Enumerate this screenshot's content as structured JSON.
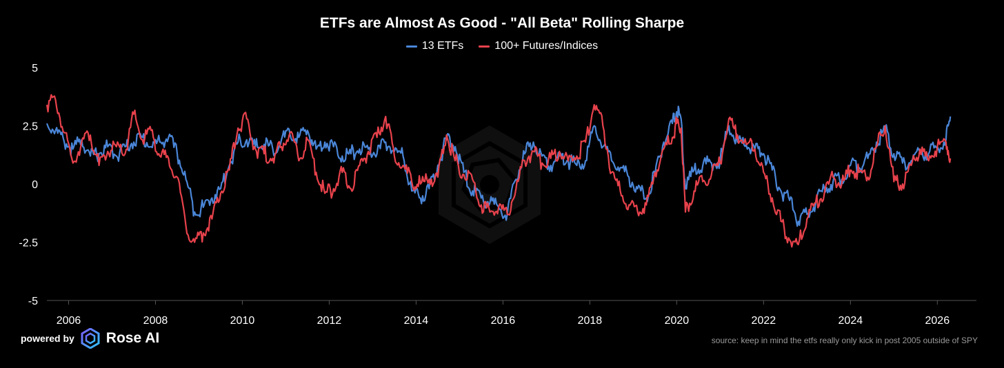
{
  "colors": {
    "background": "#000000",
    "etf": "#4a86d8",
    "futures": "#e8424c",
    "axis": "#555555",
    "tick_text": "#ffffff"
  },
  "chart_data": {
    "type": "line",
    "title": "ETFs are Almost As Good - \"All Beta\" Rolling Sharpe",
    "xlabel": "",
    "ylabel": "",
    "xlim": [
      2005.5,
      2026.9
    ],
    "ylim": [
      -5,
      5
    ],
    "yticks": [
      5,
      2.5,
      0,
      -2.5,
      -5
    ],
    "ytick_labels": [
      "5",
      "2.5",
      "0",
      "-2.5",
      "-5"
    ],
    "xticks": [
      2006,
      2008,
      2010,
      2012,
      2014,
      2016,
      2018,
      2020,
      2022,
      2024,
      2026
    ],
    "xtick_labels": [
      "2006",
      "2008",
      "2010",
      "2012",
      "2014",
      "2016",
      "2018",
      "2020",
      "2022",
      "2024",
      "2026"
    ],
    "legend_position": "top-center",
    "series": [
      {
        "name": "13 ETFs",
        "color": "#4a86d8",
        "x": [
          2005.5,
          2005.7,
          2005.9,
          2006.1,
          2006.3,
          2006.5,
          2006.7,
          2006.9,
          2007.1,
          2007.3,
          2007.5,
          2007.7,
          2007.9,
          2008.1,
          2008.3,
          2008.5,
          2008.7,
          2008.9,
          2009.1,
          2009.3,
          2009.5,
          2009.7,
          2009.9,
          2010.1,
          2010.3,
          2010.5,
          2010.7,
          2010.9,
          2011.1,
          2011.3,
          2011.5,
          2011.7,
          2011.9,
          2012.1,
          2012.3,
          2012.5,
          2012.7,
          2012.9,
          2013.1,
          2013.3,
          2013.5,
          2013.7,
          2013.9,
          2014.1,
          2014.3,
          2014.5,
          2014.7,
          2014.9,
          2015.1,
          2015.3,
          2015.5,
          2015.7,
          2015.9,
          2016.1,
          2016.3,
          2016.5,
          2016.7,
          2016.9,
          2017.1,
          2017.3,
          2017.5,
          2017.7,
          2017.9,
          2018.1,
          2018.3,
          2018.5,
          2018.7,
          2018.9,
          2019.1,
          2019.3,
          2019.5,
          2019.7,
          2019.9,
          2020.0,
          2020.1,
          2020.2,
          2020.4,
          2020.6,
          2020.8,
          2021.0,
          2021.2,
          2021.4,
          2021.6,
          2021.8,
          2022.0,
          2022.2,
          2022.4,
          2022.6,
          2022.8,
          2023.0,
          2023.2,
          2023.4,
          2023.6,
          2023.8,
          2024.0,
          2024.2,
          2024.4,
          2024.6,
          2024.8,
          2025.0,
          2025.2,
          2025.4,
          2025.6,
          2025.8,
          2026.0,
          2026.2,
          2026.3
        ],
        "values": [
          2.6,
          2.3,
          1.8,
          1.5,
          1.9,
          1.2,
          1.3,
          1.6,
          1.2,
          1.6,
          1.8,
          2.0,
          1.6,
          1.8,
          2.0,
          1.3,
          0.2,
          -1.2,
          -1.0,
          -0.6,
          -0.2,
          0.8,
          1.8,
          1.9,
          1.6,
          1.7,
          1.5,
          1.9,
          2.1,
          2.0,
          2.3,
          1.5,
          1.8,
          1.6,
          1.2,
          1.3,
          1.5,
          1.5,
          1.3,
          1.8,
          1.4,
          1.2,
          -0.3,
          -0.6,
          -0.2,
          0.8,
          1.9,
          1.6,
          0.5,
          -0.3,
          -0.6,
          -0.8,
          -1.0,
          -1.3,
          0.2,
          1.3,
          1.8,
          1.2,
          0.8,
          1.2,
          1.0,
          0.8,
          1.0,
          2.5,
          1.6,
          1.0,
          0.7,
          0.3,
          -0.2,
          -0.6,
          0.4,
          1.8,
          2.6,
          3.1,
          2.8,
          -0.2,
          0.6,
          0.8,
          0.9,
          1.0,
          2.5,
          1.8,
          1.7,
          1.5,
          1.3,
          0.6,
          -0.3,
          -0.7,
          -1.6,
          -1.3,
          -0.8,
          -0.2,
          0.1,
          0.2,
          0.8,
          0.7,
          1.1,
          1.8,
          2.4,
          1.3,
          0.9,
          1.0,
          1.4,
          1.3,
          1.6,
          1.9,
          2.9
        ]
      },
      {
        "name": "100+ Futures/Indices",
        "color": "#e8424c",
        "x": [
          2005.5,
          2005.7,
          2005.9,
          2006.1,
          2006.3,
          2006.5,
          2006.7,
          2006.9,
          2007.1,
          2007.3,
          2007.5,
          2007.7,
          2007.9,
          2008.1,
          2008.3,
          2008.5,
          2008.7,
          2008.9,
          2009.1,
          2009.3,
          2009.5,
          2009.7,
          2009.9,
          2010.1,
          2010.3,
          2010.5,
          2010.7,
          2010.9,
          2011.1,
          2011.3,
          2011.5,
          2011.7,
          2011.9,
          2012.1,
          2012.3,
          2012.5,
          2012.7,
          2012.9,
          2013.1,
          2013.3,
          2013.5,
          2013.7,
          2013.9,
          2014.1,
          2014.3,
          2014.5,
          2014.7,
          2014.9,
          2015.1,
          2015.3,
          2015.5,
          2015.7,
          2015.9,
          2016.1,
          2016.3,
          2016.5,
          2016.7,
          2016.9,
          2017.1,
          2017.3,
          2017.5,
          2017.7,
          2017.9,
          2018.1,
          2018.3,
          2018.5,
          2018.7,
          2018.9,
          2019.1,
          2019.3,
          2019.5,
          2019.7,
          2019.9,
          2020.0,
          2020.1,
          2020.2,
          2020.4,
          2020.6,
          2020.8,
          2021.0,
          2021.2,
          2021.4,
          2021.6,
          2021.8,
          2022.0,
          2022.2,
          2022.4,
          2022.6,
          2022.8,
          2023.0,
          2023.2,
          2023.4,
          2023.6,
          2023.8,
          2024.0,
          2024.2,
          2024.4,
          2024.6,
          2024.8,
          2025.0,
          2025.2,
          2025.4,
          2025.6,
          2025.8,
          2026.0,
          2026.2,
          2026.3
        ],
        "values": [
          3.4,
          3.6,
          2.2,
          0.9,
          1.8,
          2.1,
          0.8,
          1.4,
          1.6,
          1.3,
          3.0,
          1.9,
          2.3,
          1.2,
          1.1,
          0.3,
          -1.8,
          -2.5,
          -2.1,
          -1.5,
          -0.4,
          0.6,
          2.4,
          2.8,
          1.5,
          1.3,
          1.1,
          1.6,
          2.2,
          1.0,
          1.9,
          0.5,
          -0.4,
          -0.2,
          0.5,
          -0.2,
          0.8,
          1.4,
          2.0,
          2.9,
          1.2,
          0.8,
          0.1,
          0.0,
          0.2,
          0.3,
          2.1,
          1.0,
          0.4,
          0.2,
          -0.9,
          -1.2,
          -1.0,
          -1.3,
          -0.2,
          1.0,
          1.4,
          0.9,
          1.1,
          1.4,
          1.0,
          1.2,
          1.8,
          3.4,
          2.5,
          0.5,
          -0.3,
          -0.9,
          -1.2,
          -0.9,
          0.5,
          1.5,
          2.0,
          2.6,
          2.4,
          -1.2,
          -0.3,
          0.1,
          0.4,
          0.9,
          2.8,
          2.1,
          1.7,
          1.5,
          0.5,
          -0.6,
          -1.6,
          -2.4,
          -2.6,
          -1.5,
          -0.8,
          -0.4,
          0.3,
          0.0,
          0.6,
          0.5,
          0.3,
          1.6,
          2.5,
          0.1,
          0.0,
          0.8,
          1.5,
          1.0,
          1.6,
          1.8,
          1.1
        ]
      }
    ]
  },
  "footer": {
    "powered_by": "powered by",
    "brand_name": "Rose AI",
    "source_note": "source: keep in mind the etfs really only kick in post 2005 outside of SPY"
  }
}
